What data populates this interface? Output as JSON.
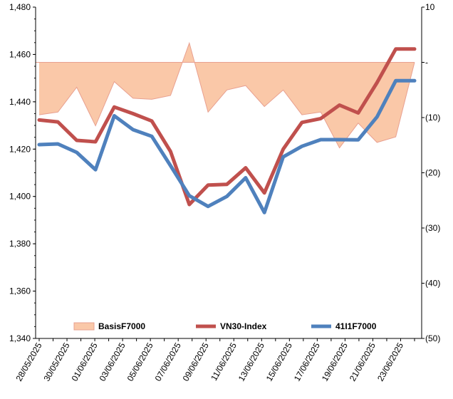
{
  "chart_data": {
    "type": "line",
    "categories": [
      "28/05/2025",
      "29/05/2025",
      "30/05/2025",
      "02/06/2025",
      "03/06/2025",
      "04/06/2025",
      "05/06/2025",
      "06/06/2025",
      "09/06/2025",
      "10/06/2025",
      "11/06/2025",
      "12/06/2025",
      "13/06/2025",
      "16/06/2025",
      "17/06/2025",
      "18/06/2025",
      "19/06/2025",
      "20/06/2025",
      "23/06/2025",
      "24/06/2025",
      "25/06/2025"
    ],
    "x_tick_labels": [
      "28/05/2025",
      "30/05/2025",
      "01/06/2025",
      "03/06/2025",
      "05/06/2025",
      "07/06/2025",
      "09/06/2025",
      "11/06/2025",
      "13/06/2025",
      "15/06/2025",
      "17/06/2025",
      "19/06/2025",
      "21/06/2025",
      "23/06/2025"
    ],
    "y_left": {
      "min": 1340,
      "max": 1480,
      "step": 20,
      "tick_labels": [
        "1,340",
        "1,360",
        "1,380",
        "1,400",
        "1,420",
        "1,440",
        "1,460",
        "1,480"
      ]
    },
    "y_right": {
      "min": -50,
      "max": 10,
      "step": 10,
      "tick_labels": [
        "(50)",
        "(40)",
        "(30)",
        "(20)",
        "(10)",
        "-",
        "10"
      ]
    },
    "series": [
      {
        "name": "BasisF7000",
        "kind": "area",
        "axis": "right",
        "color": "#FAC8A8",
        "edge_color": "#E8A090",
        "values": [
          -9.5,
          -9.0,
          -4.5,
          -11.5,
          -3.5,
          -6.5,
          -6.7,
          -6.0,
          3.5,
          -9.0,
          -5.0,
          -4.2,
          -8.0,
          -5.0,
          -9.5,
          -9.0,
          -15.5,
          -11.0,
          -14.5,
          -13.5,
          0.0
        ]
      },
      {
        "name": "VN30-Index",
        "kind": "line",
        "axis": "left",
        "color": "#C0504D",
        "values": [
          1432.3,
          1431.5,
          1423.7,
          1423.1,
          1437.8,
          1435.0,
          1431.9,
          1419.0,
          1396.6,
          1404.8,
          1405.1,
          1412.1,
          1401.5,
          1420.0,
          1431.3,
          1432.9,
          1438.6,
          1435.3,
          1448.1,
          1462.3,
          1462.3
        ]
      },
      {
        "name": "41I1F7000",
        "kind": "line",
        "axis": "left",
        "color": "#4F81BD",
        "values": [
          1421.9,
          1422.2,
          1418.6,
          1411.3,
          1434.1,
          1428.2,
          1425.4,
          1413.0,
          1400.3,
          1395.8,
          1400.0,
          1407.9,
          1393.2,
          1416.7,
          1421.2,
          1424.0,
          1424.0,
          1423.9,
          1433.6,
          1448.9,
          1448.9
        ]
      }
    ],
    "grid": false,
    "legend_position": "bottom-inside"
  }
}
